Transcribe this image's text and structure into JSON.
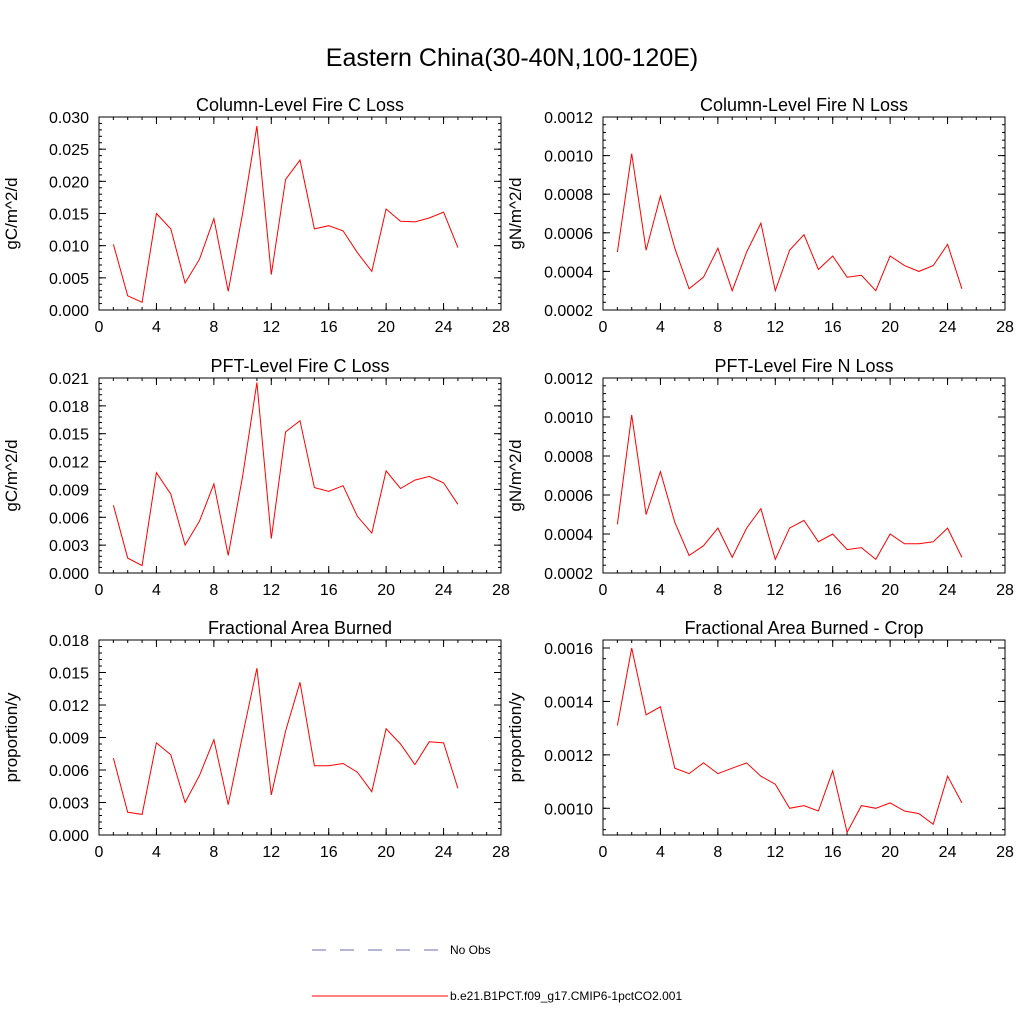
{
  "title": "Eastern China(30-40N,100-120E)",
  "chart_data": [
    {
      "type": "line",
      "title": "Column-Level Fire C Loss",
      "ylabel": "gC/m^2/d",
      "xlim": [
        0,
        28
      ],
      "ylim": [
        0,
        0.03
      ],
      "xticks": [
        "0",
        "4",
        "8",
        "12",
        "16",
        "20",
        "24",
        "28"
      ],
      "yticks": [
        "0.000",
        "0.005",
        "0.010",
        "0.015",
        "0.020",
        "0.025",
        "0.030"
      ],
      "x": [
        1,
        2,
        3,
        4,
        5,
        6,
        7,
        8,
        9,
        10,
        11,
        12,
        13,
        14,
        15,
        16,
        17,
        18,
        19,
        20,
        21,
        22,
        23,
        24,
        25
      ],
      "series": [
        {
          "name": "b.e21.B1PCT.f09_g17.CMIP6-1pctCO2.001",
          "values": [
            0.0102,
            0.0022,
            0.0012,
            0.015,
            0.0126,
            0.0042,
            0.0079,
            0.0142,
            0.0029,
            0.015,
            0.0286,
            0.0055,
            0.0203,
            0.0233,
            0.0126,
            0.0131,
            0.0123,
            0.0089,
            0.006,
            0.0157,
            0.0138,
            0.0137,
            0.0143,
            0.0152,
            0.0097
          ]
        }
      ]
    },
    {
      "type": "line",
      "title": "Column-Level Fire N Loss",
      "ylabel": "gN/m^2/d",
      "xlim": [
        0,
        28
      ],
      "ylim": [
        0.0002,
        0.0012
      ],
      "xticks": [
        "0",
        "4",
        "8",
        "12",
        "16",
        "20",
        "24",
        "28"
      ],
      "yticks": [
        "0.0002",
        "0.0004",
        "0.0006",
        "0.0008",
        "0.0010",
        "0.0012"
      ],
      "x": [
        1,
        2,
        3,
        4,
        5,
        6,
        7,
        8,
        9,
        10,
        11,
        12,
        13,
        14,
        15,
        16,
        17,
        18,
        19,
        20,
        21,
        22,
        23,
        24,
        25
      ],
      "series": [
        {
          "name": "b.e21.B1PCT.f09_g17.CMIP6-1pctCO2.001",
          "values": [
            0.0005,
            0.00101,
            0.00051,
            0.00079,
            0.00052,
            0.00031,
            0.00037,
            0.00052,
            0.0003,
            0.0005,
            0.00065,
            0.0003,
            0.00051,
            0.00059,
            0.00041,
            0.00048,
            0.00037,
            0.00038,
            0.0003,
            0.00048,
            0.00043,
            0.0004,
            0.00043,
            0.00054,
            0.00031
          ]
        }
      ]
    },
    {
      "type": "line",
      "title": "PFT-Level Fire C Loss",
      "ylabel": "gC/m^2/d",
      "xlim": [
        0,
        28
      ],
      "ylim": [
        0,
        0.021
      ],
      "xticks": [
        "0",
        "4",
        "8",
        "12",
        "16",
        "20",
        "24",
        "28"
      ],
      "yticks": [
        "0.000",
        "0.003",
        "0.006",
        "0.009",
        "0.012",
        "0.015",
        "0.018",
        "0.021"
      ],
      "x": [
        1,
        2,
        3,
        4,
        5,
        6,
        7,
        8,
        9,
        10,
        11,
        12,
        13,
        14,
        15,
        16,
        17,
        18,
        19,
        20,
        21,
        22,
        23,
        24,
        25
      ],
      "series": [
        {
          "name": "b.e21.B1PCT.f09_g17.CMIP6-1pctCO2.001",
          "values": [
            0.0073,
            0.0016,
            0.0008,
            0.0108,
            0.0085,
            0.003,
            0.0056,
            0.0096,
            0.0019,
            0.0104,
            0.0205,
            0.0037,
            0.0152,
            0.0164,
            0.0092,
            0.0088,
            0.0094,
            0.0061,
            0.0043,
            0.011,
            0.0091,
            0.01,
            0.0104,
            0.0097,
            0.0074
          ]
        }
      ]
    },
    {
      "type": "line",
      "title": "PFT-Level Fire N Loss",
      "ylabel": "gN/m^2/d",
      "xlim": [
        0,
        28
      ],
      "ylim": [
        0.0002,
        0.0012
      ],
      "xticks": [
        "0",
        "4",
        "8",
        "12",
        "16",
        "20",
        "24",
        "28"
      ],
      "yticks": [
        "0.0002",
        "0.0004",
        "0.0006",
        "0.0008",
        "0.0010",
        "0.0012"
      ],
      "x": [
        1,
        2,
        3,
        4,
        5,
        6,
        7,
        8,
        9,
        10,
        11,
        12,
        13,
        14,
        15,
        16,
        17,
        18,
        19,
        20,
        21,
        22,
        23,
        24,
        25
      ],
      "series": [
        {
          "name": "b.e21.B1PCT.f09_g17.CMIP6-1pctCO2.001",
          "values": [
            0.00045,
            0.00101,
            0.0005,
            0.00072,
            0.00046,
            0.00029,
            0.00034,
            0.00043,
            0.00028,
            0.00043,
            0.00053,
            0.00027,
            0.00043,
            0.00047,
            0.00036,
            0.0004,
            0.00032,
            0.00033,
            0.00027,
            0.0004,
            0.00035,
            0.00035,
            0.00036,
            0.00043,
            0.00028
          ]
        }
      ]
    },
    {
      "type": "line",
      "title": "Fractional Area Burned",
      "ylabel": "proportion/y",
      "xlim": [
        0,
        28
      ],
      "ylim": [
        0,
        0.018
      ],
      "xticks": [
        "0",
        "4",
        "8",
        "12",
        "16",
        "20",
        "24",
        "28"
      ],
      "yticks": [
        "0.000",
        "0.003",
        "0.006",
        "0.009",
        "0.012",
        "0.015",
        "0.018"
      ],
      "x": [
        1,
        2,
        3,
        4,
        5,
        6,
        7,
        8,
        9,
        10,
        11,
        12,
        13,
        14,
        15,
        16,
        17,
        18,
        19,
        20,
        21,
        22,
        23,
        24,
        25
      ],
      "series": [
        {
          "name": "b.e21.B1PCT.f09_g17.CMIP6-1pctCO2.001",
          "values": [
            0.0071,
            0.0021,
            0.0019,
            0.0085,
            0.0074,
            0.003,
            0.0055,
            0.0088,
            0.0028,
            0.0092,
            0.0154,
            0.0037,
            0.0096,
            0.0141,
            0.0064,
            0.0064,
            0.0066,
            0.0058,
            0.004,
            0.0098,
            0.0084,
            0.0065,
            0.0086,
            0.0085,
            0.0043
          ]
        }
      ]
    },
    {
      "type": "line",
      "title": "Fractional Area Burned - Crop",
      "ylabel": "proportion/y",
      "xlim": [
        0,
        28
      ],
      "ylim": [
        0.0009,
        0.00163
      ],
      "xticks": [
        "0",
        "4",
        "8",
        "12",
        "16",
        "20",
        "24",
        "28"
      ],
      "yticks": [
        "0.0010",
        "0.0012",
        "0.0014",
        "0.0016"
      ],
      "ytick_values": [
        0.001,
        0.0012,
        0.0014,
        0.0016
      ],
      "x": [
        1,
        2,
        3,
        4,
        5,
        6,
        7,
        8,
        9,
        10,
        11,
        12,
        13,
        14,
        15,
        16,
        17,
        18,
        19,
        20,
        21,
        22,
        23,
        24,
        25
      ],
      "series": [
        {
          "name": "b.e21.B1PCT.f09_g17.CMIP6-1pctCO2.001",
          "values": [
            0.00131,
            0.0016,
            0.00135,
            0.00138,
            0.00115,
            0.00113,
            0.00117,
            0.00113,
            0.00115,
            0.00117,
            0.00112,
            0.00109,
            0.001,
            0.00101,
            0.00099,
            0.00114,
            0.00091,
            0.00101,
            0.001,
            0.00102,
            0.00099,
            0.00098,
            0.00094,
            0.00112,
            0.00102
          ]
        }
      ]
    }
  ],
  "legend": [
    {
      "label": "No Obs",
      "style": "dashed",
      "color": "#6b6bb0"
    },
    {
      "label": "b.e21.B1PCT.f09_g17.CMIP6-1pctCO2.001",
      "style": "solid",
      "color": "#ff0000"
    }
  ]
}
